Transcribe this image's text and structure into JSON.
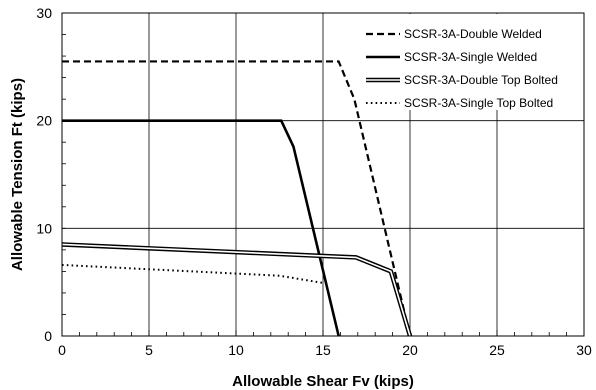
{
  "chart_data": {
    "type": "line",
    "title": "",
    "xlabel": "Allowable Shear Fv (kips)",
    "ylabel": "Allowable Tension Ft (kips)",
    "xlim": [
      0,
      30
    ],
    "ylim": [
      0,
      30
    ],
    "x_ticks": [
      "0",
      "5",
      "10",
      "15",
      "20",
      "25",
      "30"
    ],
    "y_ticks": [
      "0",
      "10",
      "20",
      "30"
    ],
    "grid": true,
    "legend_position": "top-right",
    "series": [
      {
        "name": "SCSR-3A-Double Welded",
        "style": "dashed",
        "x": [
          0,
          15.9,
          16.8,
          20.0
        ],
        "y": [
          25.5,
          25.5,
          22.0,
          0
        ]
      },
      {
        "name": "SCSR-3A-Single Welded",
        "style": "solid-thick",
        "x": [
          0,
          12.6,
          13.3,
          15.9
        ],
        "y": [
          20.0,
          20.0,
          17.6,
          0
        ]
      },
      {
        "name": "SCSR-3A-Double Top Bolted",
        "style": "double-line",
        "x": [
          0,
          16.9,
          18.9,
          20.0
        ],
        "y": [
          8.5,
          7.3,
          6.0,
          0
        ]
      },
      {
        "name": "SCSR-3A-Single Top Bolted",
        "style": "dotted",
        "x": [
          0,
          12.5,
          15.1
        ],
        "y": [
          6.6,
          5.6,
          4.9
        ]
      }
    ]
  }
}
